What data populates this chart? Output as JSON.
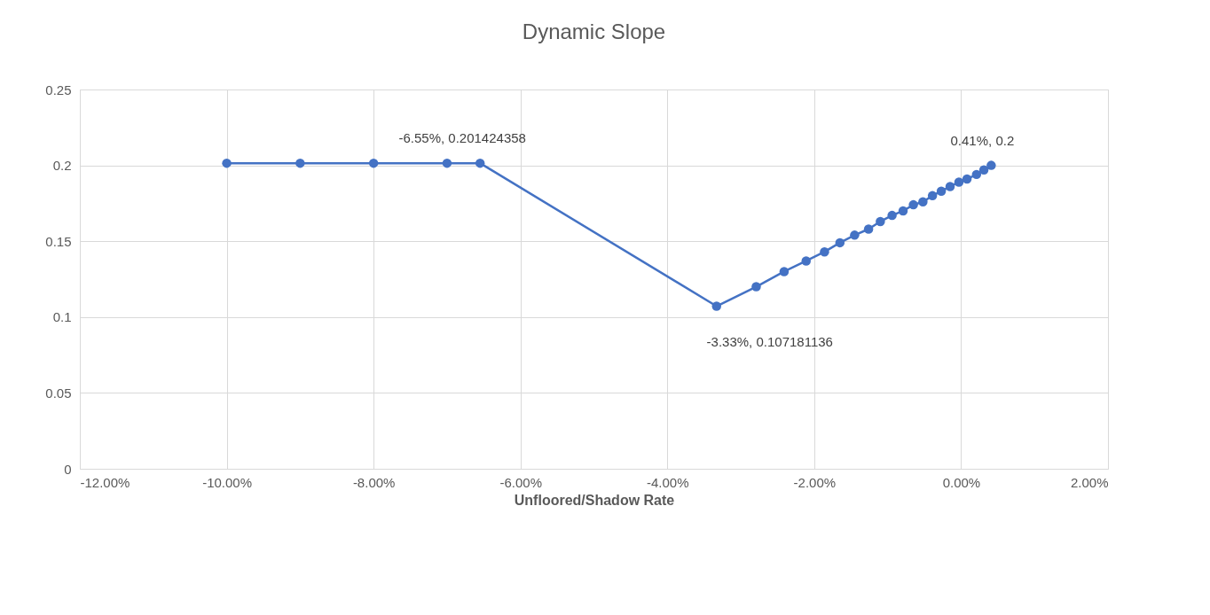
{
  "chart_data": {
    "type": "line",
    "title": "Dynamic Slope",
    "xlabel": "Unfloored/Shadow Rate",
    "x": [
      -10,
      -9,
      -8,
      -7,
      -6.55,
      -3.33,
      -2.79,
      -2.41,
      -2.11,
      -1.86,
      -1.65,
      -1.45,
      -1.26,
      -1.1,
      -0.94,
      -0.79,
      -0.65,
      -0.52,
      -0.39,
      -0.27,
      -0.15,
      -0.03,
      0.08,
      0.21,
      0.31,
      0.41
    ],
    "series": [
      {
        "color": "#4472c4",
        "values": [
          0.201424358,
          0.201424358,
          0.201424358,
          0.201424358,
          0.201424358,
          0.107181136,
          0.12,
          0.13,
          0.137,
          0.143,
          0.149,
          0.154,
          0.158,
          0.163,
          0.167,
          0.17,
          0.174,
          0.176,
          0.18,
          0.183,
          0.186,
          0.189,
          0.191,
          0.194,
          0.197,
          0.2
        ]
      }
    ],
    "xlim": [
      -12,
      2
    ],
    "xticks": [
      {
        "value": -12,
        "label": "-12.00%"
      },
      {
        "value": -10,
        "label": "-10.00%"
      },
      {
        "value": -8,
        "label": "-8.00%"
      },
      {
        "value": -6,
        "label": "-6.00%"
      },
      {
        "value": -4,
        "label": "-4.00%"
      },
      {
        "value": -2,
        "label": "-2.00%"
      },
      {
        "value": 0,
        "label": "0.00%"
      },
      {
        "value": 2,
        "label": "2.00%"
      }
    ],
    "ylim": [
      0,
      0.25
    ],
    "yticks": [
      0,
      0.05,
      0.1,
      0.15,
      0.2,
      0.25
    ],
    "grid": true,
    "marker": "circle",
    "line_style": "solid",
    "legend": false,
    "annotations": [
      {
        "text": "-6.55%, 0.201424358",
        "x": -6.55,
        "y": 0.201424358
      },
      {
        "text": "-3.33%, 0.107181136",
        "x": -3.33,
        "y": 0.107181136
      },
      {
        "text": "0.41%, 0.2",
        "x": 0.41,
        "y": 0.2
      }
    ]
  }
}
